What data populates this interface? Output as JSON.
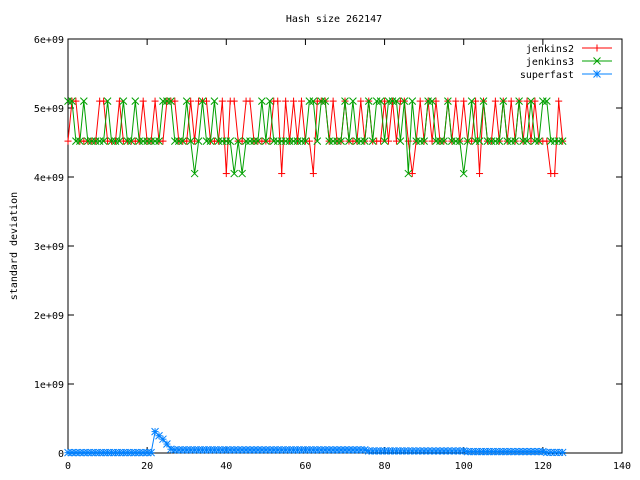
{
  "chart_data": {
    "type": "line",
    "title": "Hash size 262147",
    "xlabel": "",
    "ylabel": "standard deviation",
    "xlim": [
      0,
      140
    ],
    "ylim": [
      0,
      6000000000
    ],
    "xticks": [
      0,
      20,
      40,
      60,
      80,
      100,
      120,
      140
    ],
    "yticks": [
      0,
      1000000000,
      2000000000,
      3000000000,
      4000000000,
      5000000000,
      6000000000
    ],
    "xtick_labels": [
      "0",
      "20",
      "40",
      "60",
      "80",
      "100",
      "120",
      "140"
    ],
    "ytick_labels": [
      "0",
      "1e+09",
      "2e+09",
      "3e+09",
      "4e+09",
      "5e+09",
      "6e+09"
    ],
    "legend_position": "top-right",
    "grid": false,
    "series": [
      {
        "name": "jenkins2",
        "color": "#ff0000",
        "marker": "plus",
        "x": [
          0,
          1,
          2,
          3,
          4,
          5,
          6,
          7,
          8,
          9,
          10,
          11,
          12,
          13,
          14,
          15,
          16,
          17,
          18,
          19,
          20,
          21,
          22,
          23,
          24,
          25,
          26,
          27,
          28,
          29,
          30,
          31,
          32,
          33,
          34,
          35,
          36,
          37,
          38,
          39,
          40,
          41,
          42,
          43,
          44,
          45,
          46,
          47,
          48,
          49,
          50,
          51,
          52,
          53,
          54,
          55,
          56,
          57,
          58,
          59,
          60,
          61,
          62,
          63,
          64,
          65,
          66,
          67,
          68,
          69,
          70,
          71,
          72,
          73,
          74,
          75,
          76,
          77,
          78,
          79,
          80,
          81,
          82,
          83,
          84,
          85,
          86,
          87,
          88,
          89,
          90,
          91,
          92,
          93,
          94,
          95,
          96,
          97,
          98,
          99,
          100,
          101,
          102,
          103,
          104,
          105,
          106,
          107,
          108,
          109,
          110,
          111,
          112,
          113,
          114,
          115,
          116,
          117,
          118,
          119,
          120,
          121,
          122,
          123,
          124,
          125
        ],
        "values": [
          4520000000.0,
          5100000000.0,
          5100000000.0,
          4520000000.0,
          4520000000.0,
          4520000000.0,
          4520000000.0,
          4520000000.0,
          5100000000.0,
          5100000000.0,
          4520000000.0,
          4520000000.0,
          4520000000.0,
          5100000000.0,
          4520000000.0,
          4520000000.0,
          4520000000.0,
          4520000000.0,
          4520000000.0,
          5100000000.0,
          4520000000.0,
          4520000000.0,
          5100000000.0,
          4520000000.0,
          4520000000.0,
          5100000000.0,
          5100000000.0,
          5100000000.0,
          4520000000.0,
          4520000000.0,
          4520000000.0,
          5100000000.0,
          4520000000.0,
          5100000000.0,
          5100000000.0,
          5100000000.0,
          4520000000.0,
          4520000000.0,
          4520000000.0,
          5100000000.0,
          4050000000.0,
          5100000000.0,
          5100000000.0,
          4520000000.0,
          4520000000.0,
          5100000000.0,
          5100000000.0,
          4520000000.0,
          4520000000.0,
          4520000000.0,
          4520000000.0,
          4520000000.0,
          5100000000.0,
          5100000000.0,
          4050000000.0,
          5100000000.0,
          4520000000.0,
          5100000000.0,
          4520000000.0,
          5100000000.0,
          4520000000.0,
          4520000000.0,
          4050000000.0,
          5100000000.0,
          5100000000.0,
          5100000000.0,
          4520000000.0,
          5100000000.0,
          4520000000.0,
          4520000000.0,
          5100000000.0,
          4520000000.0,
          4520000000.0,
          4520000000.0,
          5100000000.0,
          4520000000.0,
          5100000000.0,
          4520000000.0,
          4520000000.0,
          4520000000.0,
          5100000000.0,
          4520000000.0,
          5100000000.0,
          4520000000.0,
          5100000000.0,
          5100000000.0,
          4520000000.0,
          4050000000.0,
          4520000000.0,
          5100000000.0,
          4520000000.0,
          5100000000.0,
          4520000000.0,
          5100000000.0,
          4520000000.0,
          4520000000.0,
          5100000000.0,
          4520000000.0,
          5100000000.0,
          4520000000.0,
          5100000000.0,
          4520000000.0,
          4520000000.0,
          5100000000.0,
          4050000000.0,
          5100000000.0,
          4520000000.0,
          4520000000.0,
          5100000000.0,
          4520000000.0,
          5100000000.0,
          4520000000.0,
          5100000000.0,
          4520000000.0,
          5100000000.0,
          4520000000.0,
          5100000000.0,
          4520000000.0,
          5100000000.0,
          4520000000.0,
          4520000000.0,
          4520000000.0,
          4050000000.0,
          4050000000.0,
          5100000000.0,
          4520000000.0
        ]
      },
      {
        "name": "jenkins3",
        "color": "#00a000",
        "marker": "cross",
        "x": [
          0,
          1,
          2,
          3,
          4,
          5,
          6,
          7,
          8,
          9,
          10,
          11,
          12,
          13,
          14,
          15,
          16,
          17,
          18,
          19,
          20,
          21,
          22,
          23,
          24,
          25,
          26,
          27,
          28,
          29,
          30,
          31,
          32,
          33,
          34,
          35,
          36,
          37,
          38,
          39,
          40,
          41,
          42,
          43,
          44,
          45,
          46,
          47,
          48,
          49,
          50,
          51,
          52,
          53,
          54,
          55,
          56,
          57,
          58,
          59,
          60,
          61,
          62,
          63,
          64,
          65,
          66,
          67,
          68,
          69,
          70,
          71,
          72,
          73,
          74,
          75,
          76,
          77,
          78,
          79,
          80,
          81,
          82,
          83,
          84,
          85,
          86,
          87,
          88,
          89,
          90,
          91,
          92,
          93,
          94,
          95,
          96,
          97,
          98,
          99,
          100,
          101,
          102,
          103,
          104,
          105,
          106,
          107,
          108,
          109,
          110,
          111,
          112,
          113,
          114,
          115,
          116,
          117,
          118,
          119,
          120,
          121,
          122,
          123,
          124,
          125
        ],
        "values": [
          5100000000.0,
          5100000000.0,
          4520000000.0,
          4520000000.0,
          5100000000.0,
          4520000000.0,
          4520000000.0,
          4520000000.0,
          4520000000.0,
          4520000000.0,
          5100000000.0,
          4520000000.0,
          4520000000.0,
          4520000000.0,
          5100000000.0,
          4520000000.0,
          4520000000.0,
          5100000000.0,
          4520000000.0,
          4520000000.0,
          4520000000.0,
          4520000000.0,
          4520000000.0,
          4520000000.0,
          5100000000.0,
          5100000000.0,
          5100000000.0,
          4520000000.0,
          4520000000.0,
          4520000000.0,
          5100000000.0,
          4520000000.0,
          4050000000.0,
          4520000000.0,
          5100000000.0,
          4520000000.0,
          4520000000.0,
          5100000000.0,
          4520000000.0,
          4520000000.0,
          4520000000.0,
          4520000000.0,
          4050000000.0,
          4520000000.0,
          4050000000.0,
          4520000000.0,
          4520000000.0,
          4520000000.0,
          4520000000.0,
          5100000000.0,
          4520000000.0,
          5100000000.0,
          4520000000.0,
          4520000000.0,
          4520000000.0,
          4520000000.0,
          4520000000.0,
          4520000000.0,
          4520000000.0,
          4520000000.0,
          4520000000.0,
          5100000000.0,
          5100000000.0,
          4520000000.0,
          5100000000.0,
          5100000000.0,
          4520000000.0,
          4520000000.0,
          4520000000.0,
          4520000000.0,
          5100000000.0,
          4520000000.0,
          5100000000.0,
          4520000000.0,
          4520000000.0,
          4520000000.0,
          5100000000.0,
          4520000000.0,
          5100000000.0,
          5100000000.0,
          4520000000.0,
          5100000000.0,
          5100000000.0,
          5100000000.0,
          4520000000.0,
          5100000000.0,
          4050000000.0,
          5100000000.0,
          4520000000.0,
          4520000000.0,
          4520000000.0,
          5100000000.0,
          5100000000.0,
          4520000000.0,
          4520000000.0,
          4520000000.0,
          5100000000.0,
          4520000000.0,
          4520000000.0,
          4520000000.0,
          4050000000.0,
          4520000000.0,
          5100000000.0,
          4520000000.0,
          4520000000.0,
          5100000000.0,
          4520000000.0,
          4520000000.0,
          4520000000.0,
          4520000000.0,
          5100000000.0,
          4520000000.0,
          4520000000.0,
          4520000000.0,
          5100000000.0,
          4520000000.0,
          4520000000.0,
          5100000000.0,
          4520000000.0,
          4520000000.0,
          5100000000.0,
          5100000000.0,
          4520000000.0,
          4520000000.0,
          4520000000.0,
          4520000000.0
        ]
      },
      {
        "name": "superfast",
        "color": "#0080ff",
        "marker": "star",
        "x": [
          0,
          1,
          2,
          3,
          4,
          5,
          6,
          7,
          8,
          9,
          10,
          11,
          12,
          13,
          14,
          15,
          16,
          17,
          18,
          19,
          20,
          21,
          22,
          23,
          24,
          25,
          26,
          27,
          28,
          29,
          30,
          31,
          32,
          33,
          34,
          35,
          36,
          37,
          38,
          39,
          40,
          41,
          42,
          43,
          44,
          45,
          46,
          47,
          48,
          49,
          50,
          51,
          52,
          53,
          54,
          55,
          56,
          57,
          58,
          59,
          60,
          61,
          62,
          63,
          64,
          65,
          66,
          67,
          68,
          69,
          70,
          71,
          72,
          73,
          74,
          75,
          76,
          77,
          78,
          79,
          80,
          81,
          82,
          83,
          84,
          85,
          86,
          87,
          88,
          89,
          90,
          91,
          92,
          93,
          94,
          95,
          96,
          97,
          98,
          99,
          100,
          101,
          102,
          103,
          104,
          105,
          106,
          107,
          108,
          109,
          110,
          111,
          112,
          113,
          114,
          115,
          116,
          117,
          118,
          119,
          120,
          121,
          122,
          123,
          124,
          125
        ],
        "values": [
          5000000.0,
          5000000.0,
          5000000.0,
          5000000.0,
          5000000.0,
          5000000.0,
          5000000.0,
          5000000.0,
          5000000.0,
          5000000.0,
          5000000.0,
          5000000.0,
          5000000.0,
          5000000.0,
          5000000.0,
          5000000.0,
          5000000.0,
          5000000.0,
          5000000.0,
          5000000.0,
          5000000.0,
          5000000.0,
          310000000.0,
          250000000.0,
          200000000.0,
          130000000.0,
          55000000.0,
          45000000.0,
          45000000.0,
          45000000.0,
          45000000.0,
          45000000.0,
          45000000.0,
          45000000.0,
          45000000.0,
          45000000.0,
          45000000.0,
          45000000.0,
          45000000.0,
          45000000.0,
          45000000.0,
          45000000.0,
          45000000.0,
          45000000.0,
          45000000.0,
          45000000.0,
          45000000.0,
          45000000.0,
          45000000.0,
          45000000.0,
          45000000.0,
          45000000.0,
          45000000.0,
          45000000.0,
          45000000.0,
          45000000.0,
          45000000.0,
          45000000.0,
          45000000.0,
          45000000.0,
          45000000.0,
          45000000.0,
          45000000.0,
          45000000.0,
          45000000.0,
          45000000.0,
          45000000.0,
          45000000.0,
          45000000.0,
          45000000.0,
          45000000.0,
          45000000.0,
          45000000.0,
          45000000.0,
          45000000.0,
          45000000.0,
          30000000.0,
          30000000.0,
          30000000.0,
          30000000.0,
          30000000.0,
          30000000.0,
          30000000.0,
          30000000.0,
          30000000.0,
          30000000.0,
          30000000.0,
          30000000.0,
          30000000.0,
          30000000.0,
          30000000.0,
          30000000.0,
          30000000.0,
          30000000.0,
          30000000.0,
          30000000.0,
          30000000.0,
          30000000.0,
          30000000.0,
          30000000.0,
          30000000.0,
          20000000.0,
          20000000.0,
          20000000.0,
          20000000.0,
          20000000.0,
          20000000.0,
          20000000.0,
          20000000.0,
          20000000.0,
          20000000.0,
          20000000.0,
          20000000.0,
          20000000.0,
          20000000.0,
          20000000.0,
          20000000.0,
          20000000.0,
          20000000.0,
          20000000.0,
          20000000.0,
          8000000.0,
          8000000.0,
          8000000.0,
          8000000.0,
          8000000.0
        ]
      }
    ]
  }
}
